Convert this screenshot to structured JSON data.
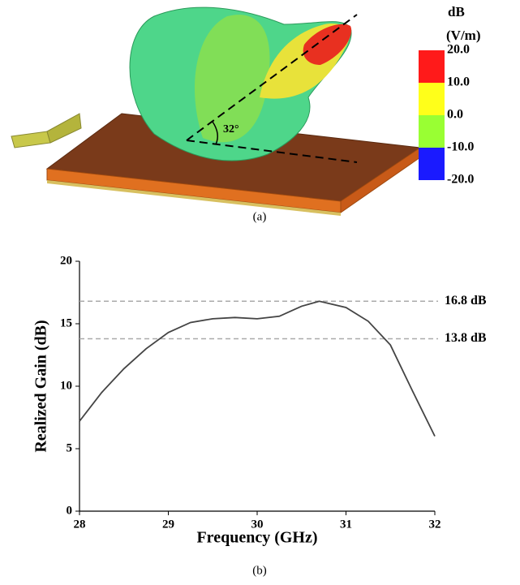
{
  "figure_a": {
    "caption": "(a)",
    "angle_label": "32°",
    "colorbar": {
      "title": [
        "dB",
        "(V/m)"
      ],
      "ticks": [
        {
          "value": 20,
          "label": "20.0"
        },
        {
          "value": 10,
          "label": "10.0"
        },
        {
          "value": 0,
          "label": "0.0"
        },
        {
          "value": -10,
          "label": "-10.0"
        },
        {
          "value": -20,
          "label": "-20.0"
        }
      ],
      "lim": [
        -20,
        20
      ],
      "colors": [
        "#ff1a1a",
        "#ffff1a",
        "#99ff33",
        "#1a1aff"
      ]
    }
  },
  "chart_data": {
    "type": "line",
    "caption": "(b)",
    "x_label": "Frequency (GHz)",
    "y_label": "Realized Gain (dB)",
    "x": [
      28,
      28.25,
      28.5,
      28.75,
      29,
      29.25,
      29.5,
      29.75,
      30,
      30.25,
      30.5,
      30.7,
      31,
      31.25,
      31.5,
      31.75,
      32
    ],
    "series": [
      {
        "color": "#444444",
        "values": [
          7.2,
          9.5,
          11.4,
          13.0,
          14.3,
          15.1,
          15.4,
          15.5,
          15.4,
          15.6,
          16.4,
          16.8,
          16.3,
          15.2,
          13.3,
          9.6,
          6.0
        ]
      }
    ],
    "xlim": [
      28,
      32
    ],
    "xticks": [
      28,
      29,
      30,
      31,
      32
    ],
    "ylim": [
      0,
      20
    ],
    "yticks": [
      0,
      5,
      10,
      15,
      20
    ],
    "reference_lines": [
      {
        "value": 16.8,
        "label": "16.8 dB"
      },
      {
        "value": 13.8,
        "label": "13.8 dB"
      }
    ]
  }
}
